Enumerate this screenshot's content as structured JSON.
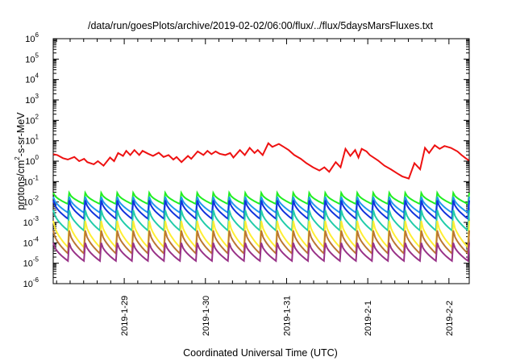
{
  "chart_data": {
    "type": "line",
    "title": "/data/run/goesPlots/archive/2019-02-02/06:00/flux/../flux/5daysMarsFluxes.txt",
    "xlabel": "Coordinated Universal Time (UTC)",
    "ylabel": "protons/cm²-s-sr-MeV",
    "ylabel_base": "protons/cm",
    "ylabel_sup": "2",
    "ylabel_rest": "-s-sr-MeV",
    "yscale": "log",
    "ylim": [
      1e-06,
      1000000.0
    ],
    "y_ticks": [
      "10^-6",
      "10^-5",
      "10^-4",
      "10^-3",
      "10^-2",
      "10^-1",
      "10^0",
      "10^1",
      "10^2",
      "10^3",
      "10^4",
      "10^5",
      "10^6"
    ],
    "y_tick_base": "10",
    "y_tick_exponents": [
      "-6",
      "-5",
      "-4",
      "-3",
      "-2",
      "-1",
      "0",
      "1",
      "2",
      "3",
      "4",
      "5",
      "6"
    ],
    "x_range_days": [
      "2019-01-28T03:00",
      "2019-02-02T06:00"
    ],
    "x_ticks": [
      "2019-1-29",
      "2019-1-30",
      "2019-1-31",
      "2019-2-1",
      "2019-2-2"
    ],
    "grid": false,
    "legend": "none",
    "series": [
      {
        "color": "#ee1111",
        "x": [
          0.0,
          0.05,
          0.12,
          0.18,
          0.26,
          0.32,
          0.38,
          0.42,
          0.5,
          0.55,
          0.62,
          0.7,
          0.75,
          0.8,
          0.86,
          0.9,
          0.95,
          1.0,
          1.06,
          1.1,
          1.17,
          1.23,
          1.3,
          1.36,
          1.42,
          1.48,
          1.52,
          1.58,
          1.66,
          1.7,
          1.78,
          1.85,
          1.9,
          1.95,
          2.0,
          2.05,
          2.12,
          2.18,
          2.22,
          2.3,
          2.36,
          2.42,
          2.48,
          2.52,
          2.58,
          2.65,
          2.7,
          2.78,
          2.84,
          2.9,
          2.97,
          3.05,
          3.12,
          3.2,
          3.28,
          3.34,
          3.4,
          3.48,
          3.54,
          3.6,
          3.66,
          3.72,
          3.76,
          3.8,
          3.86,
          3.9,
          4.0,
          4.08,
          4.16,
          4.24,
          4.3,
          4.38,
          4.45,
          4.52,
          4.58,
          4.63,
          4.7,
          4.76,
          4.82,
          4.9,
          4.98,
          5.03,
          5.08,
          5.12
        ],
        "y": [
          2.2,
          2.0,
          1.4,
          1.2,
          1.6,
          1.0,
          1.3,
          0.9,
          0.7,
          1.0,
          0.6,
          1.5,
          1.0,
          2.5,
          1.8,
          3.2,
          2.0,
          3.5,
          2.0,
          3.2,
          2.3,
          1.8,
          2.6,
          1.6,
          2.0,
          1.2,
          1.6,
          0.9,
          1.8,
          1.3,
          3.0,
          2.0,
          3.2,
          2.2,
          3.0,
          2.3,
          2.0,
          2.5,
          1.5,
          3.5,
          2.0,
          4.5,
          2.5,
          3.5,
          2.0,
          7.5,
          5.0,
          7.0,
          5.0,
          3.5,
          2.0,
          1.3,
          0.8,
          0.5,
          0.35,
          0.5,
          0.3,
          0.9,
          0.5,
          4.0,
          1.8,
          3.5,
          1.5,
          4.0,
          3.0,
          2.0,
          1.1,
          0.6,
          0.4,
          0.25,
          0.18,
          0.14,
          0.8,
          0.4,
          4.5,
          2.5,
          6.0,
          4.0,
          5.5,
          4.5,
          3.0,
          2.0,
          1.4,
          1.1
        ]
      },
      {
        "color": "#22ee22",
        "base": 0.008,
        "peak": 0.028,
        "cycles": 26
      },
      {
        "color": "#2299ee",
        "base": 0.003,
        "peak": 0.018,
        "cycles": 26
      },
      {
        "color": "#1133dd",
        "base": 0.0015,
        "peak": 0.012,
        "cycles": 26
      },
      {
        "color": "#22ccaa",
        "base": 0.0004,
        "peak": 0.004,
        "cycles": 26
      },
      {
        "color": "#ffee33",
        "base": 6e-05,
        "peak": 0.0012,
        "cycles": 26
      },
      {
        "color": "#bb7733",
        "base": 3e-05,
        "peak": 0.0004,
        "cycles": 26
      },
      {
        "color": "#993388",
        "base": 1.3e-05,
        "peak": 0.0001,
        "cycles": 26
      }
    ]
  }
}
